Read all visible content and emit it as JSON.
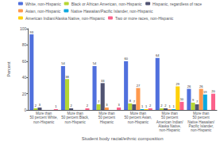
{
  "chart_data": {
    "type": "bar",
    "xlabel": "Student body racial/ethnic composition",
    "ylabel": "Percent",
    "categories": [
      "More than\n50 percent White,\nnon-Hispanic",
      "More than\n50 percent Black,\nnon-Hispanic",
      "More than\n50 percent\nHispanic",
      "More than\n50 percent Asian,\nnon-Hispanic",
      "More than\n50 percent\nAmerican Indian/\nAlaska Native,\nnon-Hispanic",
      "More than\n50 percent\nNative Hawaiian/\nPacific Islander,\nnon-Hispanic"
    ],
    "series": [
      {
        "name": "White, non-Hispanic",
        "values": [
          93,
          54,
          54,
          60,
          64,
          26
        ]
      },
      {
        "name": "Black or African American, non-Hispanic",
        "values": [
          2,
          38,
          7,
          8,
          2,
          9
        ]
      },
      {
        "name": "Hispanic, regardless of race",
        "values": [
          3,
          2,
          33,
          7,
          2,
          7
        ]
      },
      {
        "name": "Asian, non-Hispanic",
        "values": [
          0,
          0,
          3,
          27,
          1,
          26
        ]
      },
      {
        "name": "Native Hawaiian/Pacific Islander, non-Hispanic",
        "values": [
          0,
          0,
          0,
          1,
          1,
          19
        ]
      },
      {
        "name": "American Indian/Alaska Native, non-Hispanic",
        "values": [
          0,
          0,
          0,
          1,
          29,
          0
        ]
      },
      {
        "name": "Two or more races, non-Hispanic",
        "values": [
          1,
          2,
          3,
          2,
          10,
          20
        ]
      }
    ],
    "ylim": [
      0,
      100
    ],
    "yticks": [
      0,
      20,
      40,
      60,
      80,
      100
    ],
    "grid": false,
    "legend": "top",
    "data_labels": true
  }
}
